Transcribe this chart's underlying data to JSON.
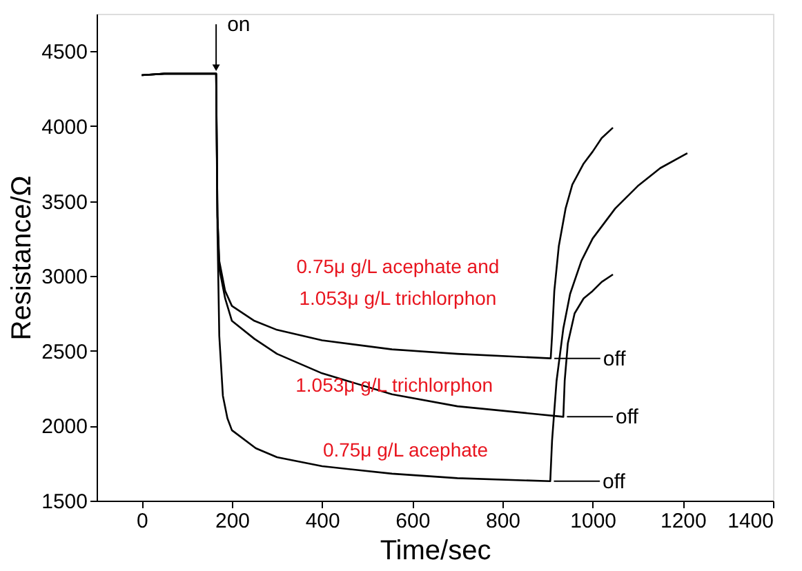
{
  "chart_data": {
    "type": "line",
    "xlabel": "Time/sec",
    "ylabel": "Resistance/Ω",
    "xlim": [
      -100,
      1400
    ],
    "ylim": [
      1500,
      4750
    ],
    "xticks": [
      0,
      200,
      400,
      600,
      800,
      1000,
      1200,
      1400
    ],
    "yticks": [
      1500,
      2000,
      2500,
      3000,
      3500,
      4000,
      4500
    ],
    "grid": false,
    "marker": "none",
    "line_style": "solid",
    "series": [
      {
        "name": "0.75μ g/L acephate and\n1.053μ g/L trichlorphon",
        "color": "#000000",
        "x": [
          0,
          50,
          100,
          150,
          165,
          168,
          172,
          185,
          200,
          250,
          300,
          400,
          555,
          700,
          907,
          910,
          915,
          925,
          940,
          955,
          980,
          1000,
          1020,
          1045
        ],
        "values": [
          4340,
          4350,
          4350,
          4350,
          4350,
          3400,
          3100,
          2900,
          2800,
          2700,
          2640,
          2570,
          2510,
          2480,
          2450,
          2600,
          2900,
          3200,
          3450,
          3610,
          3750,
          3830,
          3920,
          3990
        ]
      },
      {
        "name": "1.053μ g/L trichlorphon",
        "color": "#000000",
        "x": [
          0,
          50,
          100,
          150,
          165,
          168,
          172,
          185,
          200,
          250,
          300,
          400,
          555,
          700,
          935,
          938,
          945,
          960,
          980,
          1000,
          1020,
          1045
        ],
        "values": [
          4340,
          4350,
          4350,
          4350,
          4350,
          3400,
          3050,
          2850,
          2700,
          2580,
          2480,
          2350,
          2210,
          2130,
          2060,
          2300,
          2550,
          2750,
          2850,
          2900,
          2960,
          3010
        ]
      },
      {
        "name": "0.75μ g/L acephate",
        "color": "#000000",
        "x": [
          0,
          50,
          100,
          150,
          165,
          168,
          172,
          180,
          190,
          200,
          253,
          300,
          400,
          555,
          700,
          906,
          910,
          920,
          935,
          950,
          975,
          1000,
          1050,
          1100,
          1150,
          1210
        ],
        "values": [
          4340,
          4350,
          4350,
          4350,
          4350,
          3300,
          2600,
          2200,
          2050,
          1970,
          1850,
          1790,
          1730,
          1680,
          1650,
          1630,
          1900,
          2300,
          2650,
          2880,
          3100,
          3250,
          3450,
          3600,
          3720,
          3820
        ]
      }
    ],
    "annotations": [
      {
        "text": "on",
        "x": 165,
        "y": 4350
      },
      {
        "text": "off",
        "x": 907,
        "y": 2450
      },
      {
        "text": "off",
        "x": 935,
        "y": 2060
      },
      {
        "text": "off",
        "x": 906,
        "y": 1630
      }
    ]
  }
}
